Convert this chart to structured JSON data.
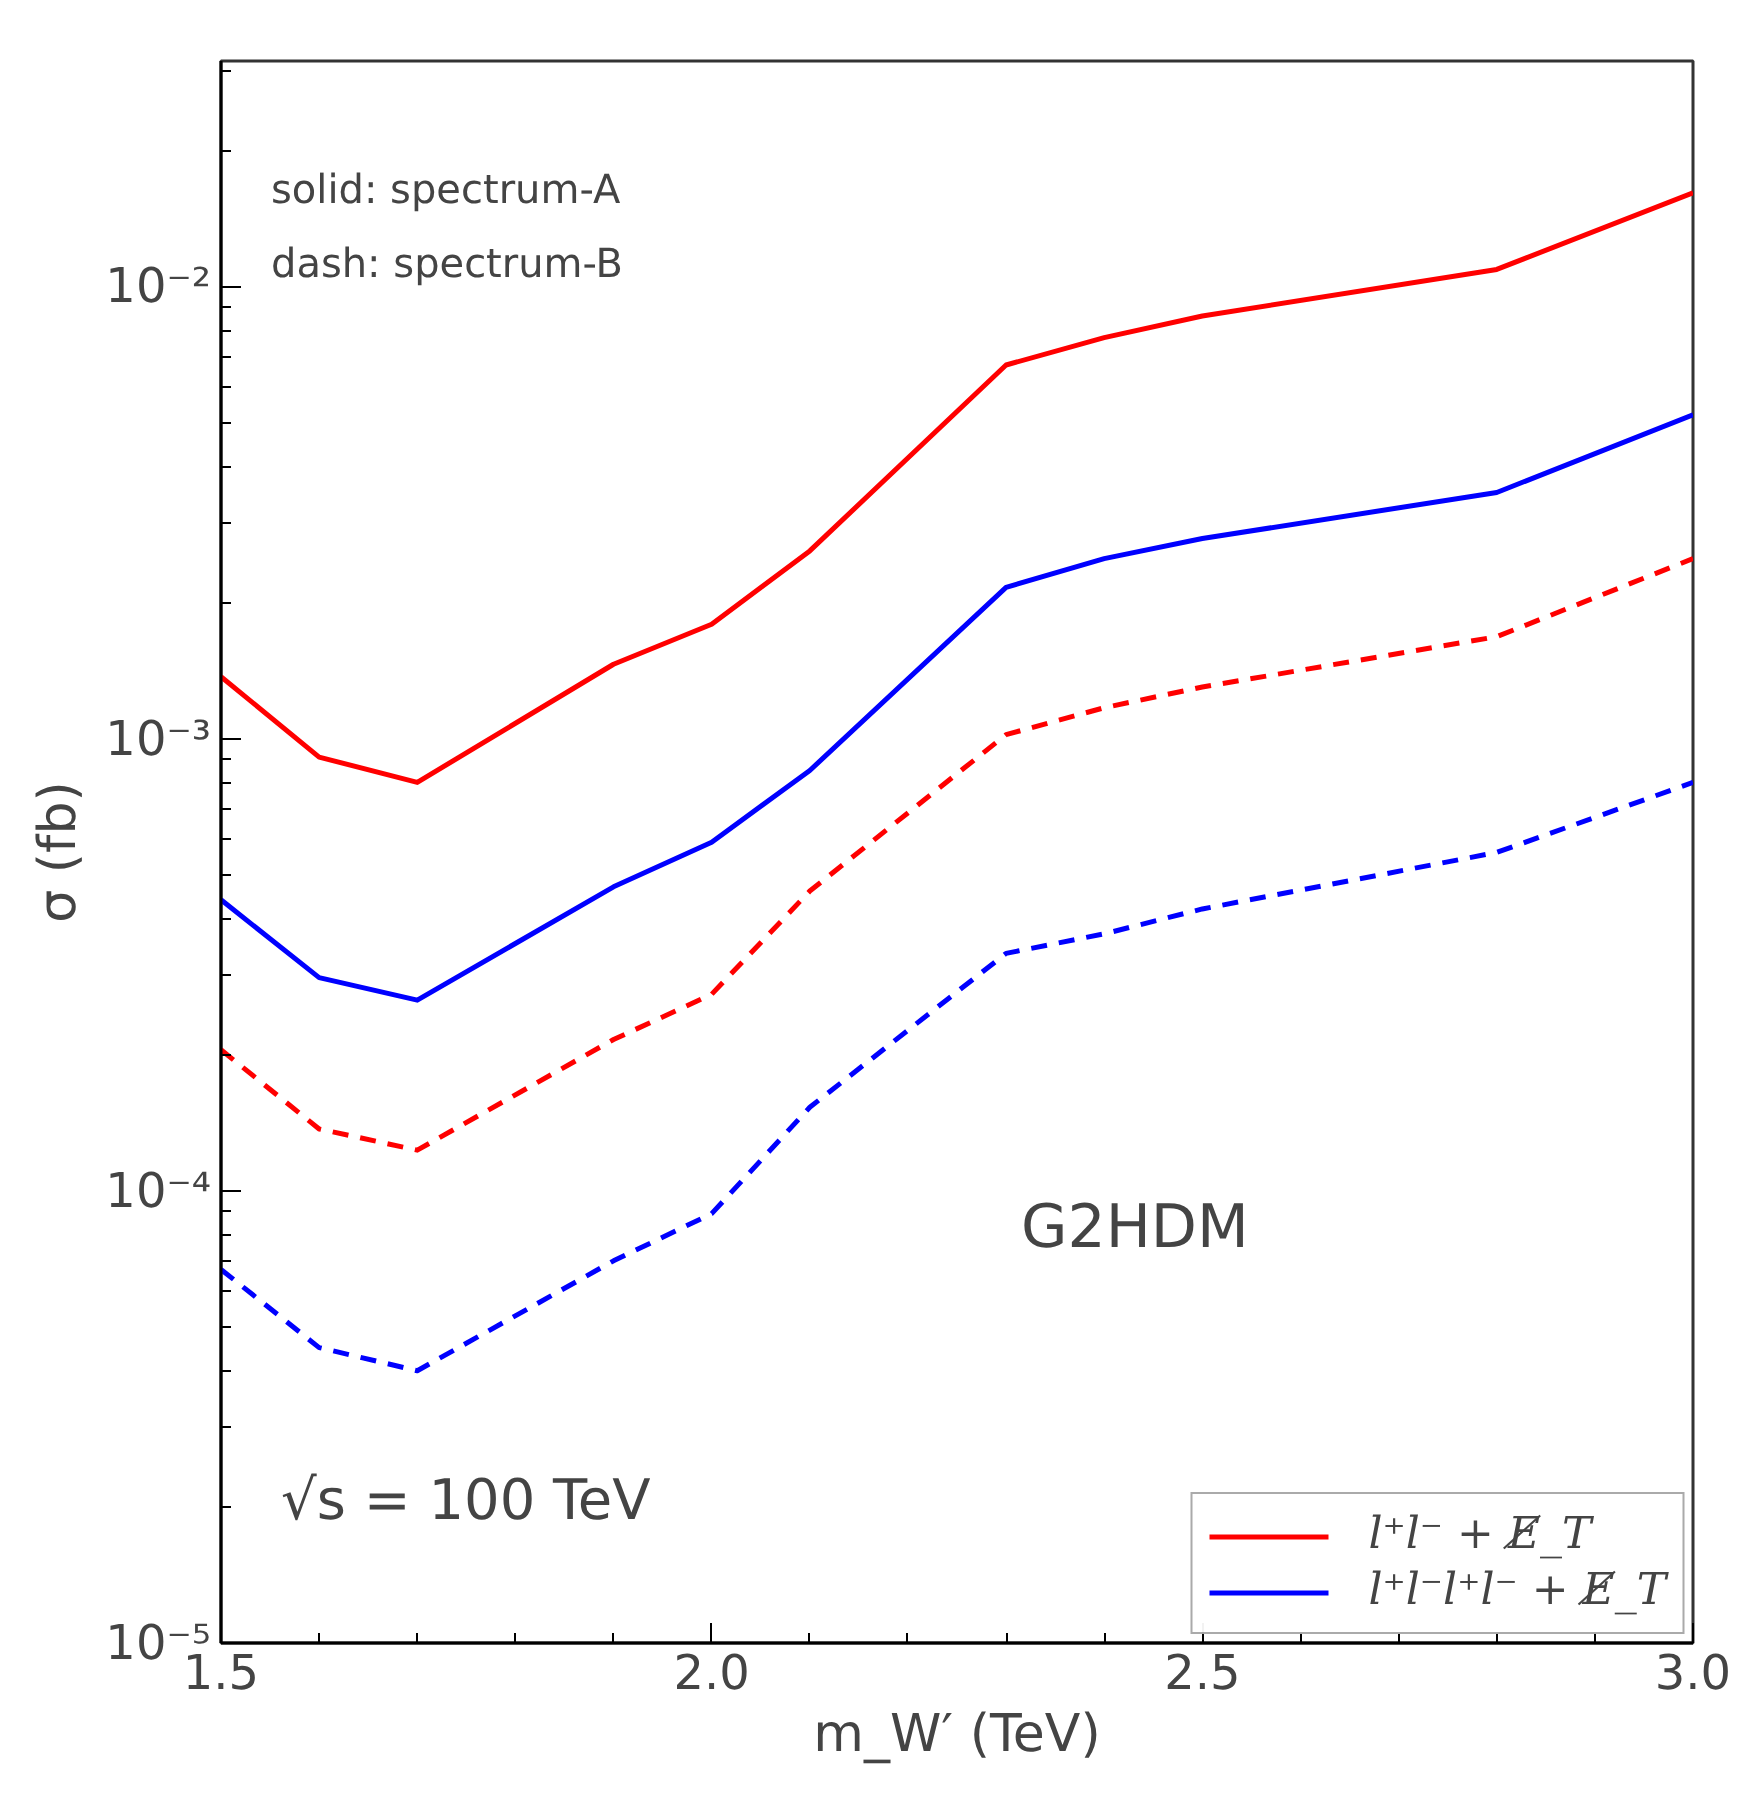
{
  "chart_data": {
    "type": "line",
    "xlabel": "m_W′ (TeV)",
    "ylabel": "σ (fb)",
    "x": [
      1.5,
      1.6,
      1.7,
      1.9,
      2.0,
      2.1,
      2.3,
      2.4,
      2.5,
      2.8,
      3.0
    ],
    "series": [
      {
        "name": "l⁺l⁻ + E̸_T",
        "color": "#ff0000",
        "line_style": "solid",
        "values": [
          0.00137,
          0.00091,
          0.0008,
          0.00146,
          0.00179,
          0.0026,
          0.0067,
          0.0077,
          0.0086,
          0.0109,
          0.0161
        ]
      },
      {
        "name": "l⁺l⁻l⁺l⁻ + E̸_T",
        "color": "#0000ff",
        "line_style": "solid",
        "values": [
          0.00044,
          0.000296,
          0.000264,
          0.00047,
          0.00059,
          0.00085,
          0.00216,
          0.0025,
          0.00277,
          0.0035,
          0.0052
        ]
      },
      {
        "color": "#ff0000",
        "line_style": "dashed",
        "values": [
          0.000205,
          0.000137,
          0.000123,
          0.000216,
          0.000272,
          0.00046,
          0.00102,
          0.00117,
          0.0013,
          0.00168,
          0.0025
        ]
      },
      {
        "color": "#0000ff",
        "line_style": "dashed",
        "values": [
          6.7e-05,
          4.5e-05,
          4e-05,
          7e-05,
          8.9e-05,
          0.000153,
          0.000335,
          0.00037,
          0.00042,
          0.00056,
          0.0008
        ]
      }
    ],
    "log": "y",
    "grid": false,
    "legend": "bottom right",
    "xlim": [
      1.5,
      3.0
    ],
    "xticks": [
      {
        "value": 1.5,
        "label": "1.5"
      },
      {
        "value": 2.0,
        "label": "2.0"
      },
      {
        "value": 2.5,
        "label": "2.5"
      },
      {
        "value": 3.0,
        "label": "3.0"
      }
    ],
    "ylim": [
      1e-05,
      0.0315
    ],
    "yticks": [
      {
        "value": 1e-05,
        "label": "10⁻⁵"
      },
      {
        "value": 0.0001,
        "label": "10⁻⁴"
      },
      {
        "value": 0.001,
        "label": "10⁻³"
      },
      {
        "value": 0.01,
        "label": "10⁻²"
      }
    ],
    "annotations": [
      "solid: spectrum-A",
      "dash: spectrum-B",
      "G2HDM",
      "√s = 100 TeV"
    ]
  }
}
